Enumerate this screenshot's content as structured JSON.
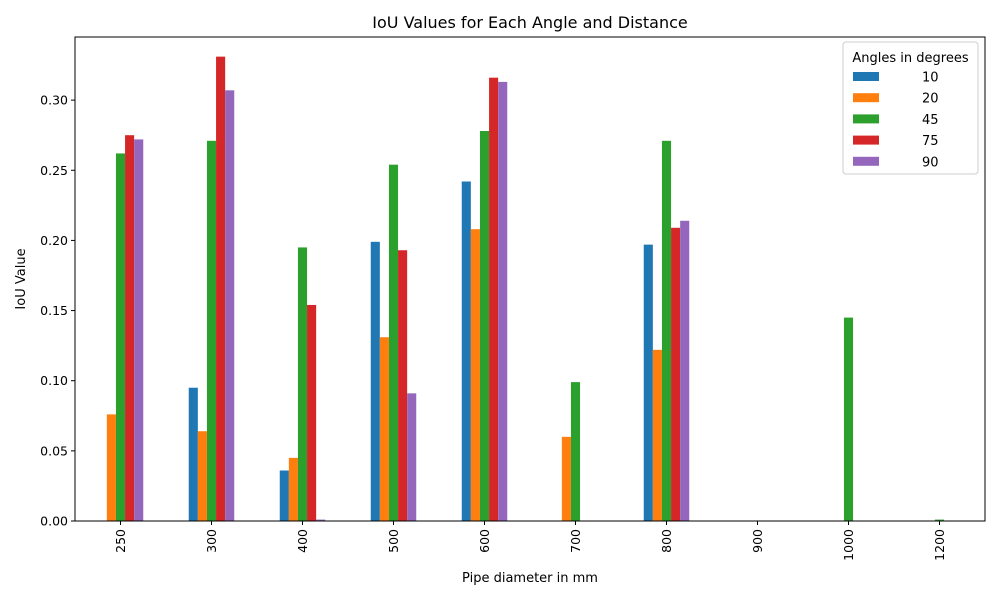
{
  "chart_data": {
    "type": "bar",
    "title": "IoU Values for Each Angle and Distance",
    "xlabel": "Pipe diameter in mm",
    "ylabel": "IoU Value",
    "categories": [
      "250",
      "300",
      "400",
      "500",
      "600",
      "700",
      "800",
      "900",
      "1000",
      "1200"
    ],
    "ylim": [
      0,
      0.345
    ],
    "yticks": [
      0.0,
      0.05,
      0.1,
      0.15,
      0.2,
      0.25,
      0.3
    ],
    "ytick_labels": [
      "0.00",
      "0.05",
      "0.10",
      "0.15",
      "0.20",
      "0.25",
      "0.30"
    ],
    "x_tick_rotation": "vertical",
    "grid": false,
    "legend": {
      "title": "Angles in degrees",
      "placement": "upper right"
    },
    "series": [
      {
        "name": "10",
        "color": "#1f77b4",
        "values": [
          0.0,
          0.095,
          0.036,
          0.199,
          0.242,
          0.0,
          0.197,
          0.0,
          0.0,
          0.0
        ]
      },
      {
        "name": "20",
        "color": "#ff7f0e",
        "values": [
          0.076,
          0.064,
          0.045,
          0.131,
          0.208,
          0.06,
          0.122,
          0.0,
          0.0,
          0.0
        ]
      },
      {
        "name": "45",
        "color": "#2ca02c",
        "values": [
          0.262,
          0.271,
          0.195,
          0.254,
          0.278,
          0.099,
          0.271,
          0.0,
          0.145,
          0.001
        ]
      },
      {
        "name": "75",
        "color": "#d62728",
        "values": [
          0.275,
          0.331,
          0.154,
          0.193,
          0.316,
          0.0,
          0.209,
          0.0,
          0.0,
          0.0
        ]
      },
      {
        "name": "90",
        "color": "#9467bd",
        "values": [
          0.272,
          0.307,
          0.001,
          0.091,
          0.313,
          0.0,
          0.214,
          0.0,
          0.0,
          0.0
        ]
      }
    ]
  }
}
